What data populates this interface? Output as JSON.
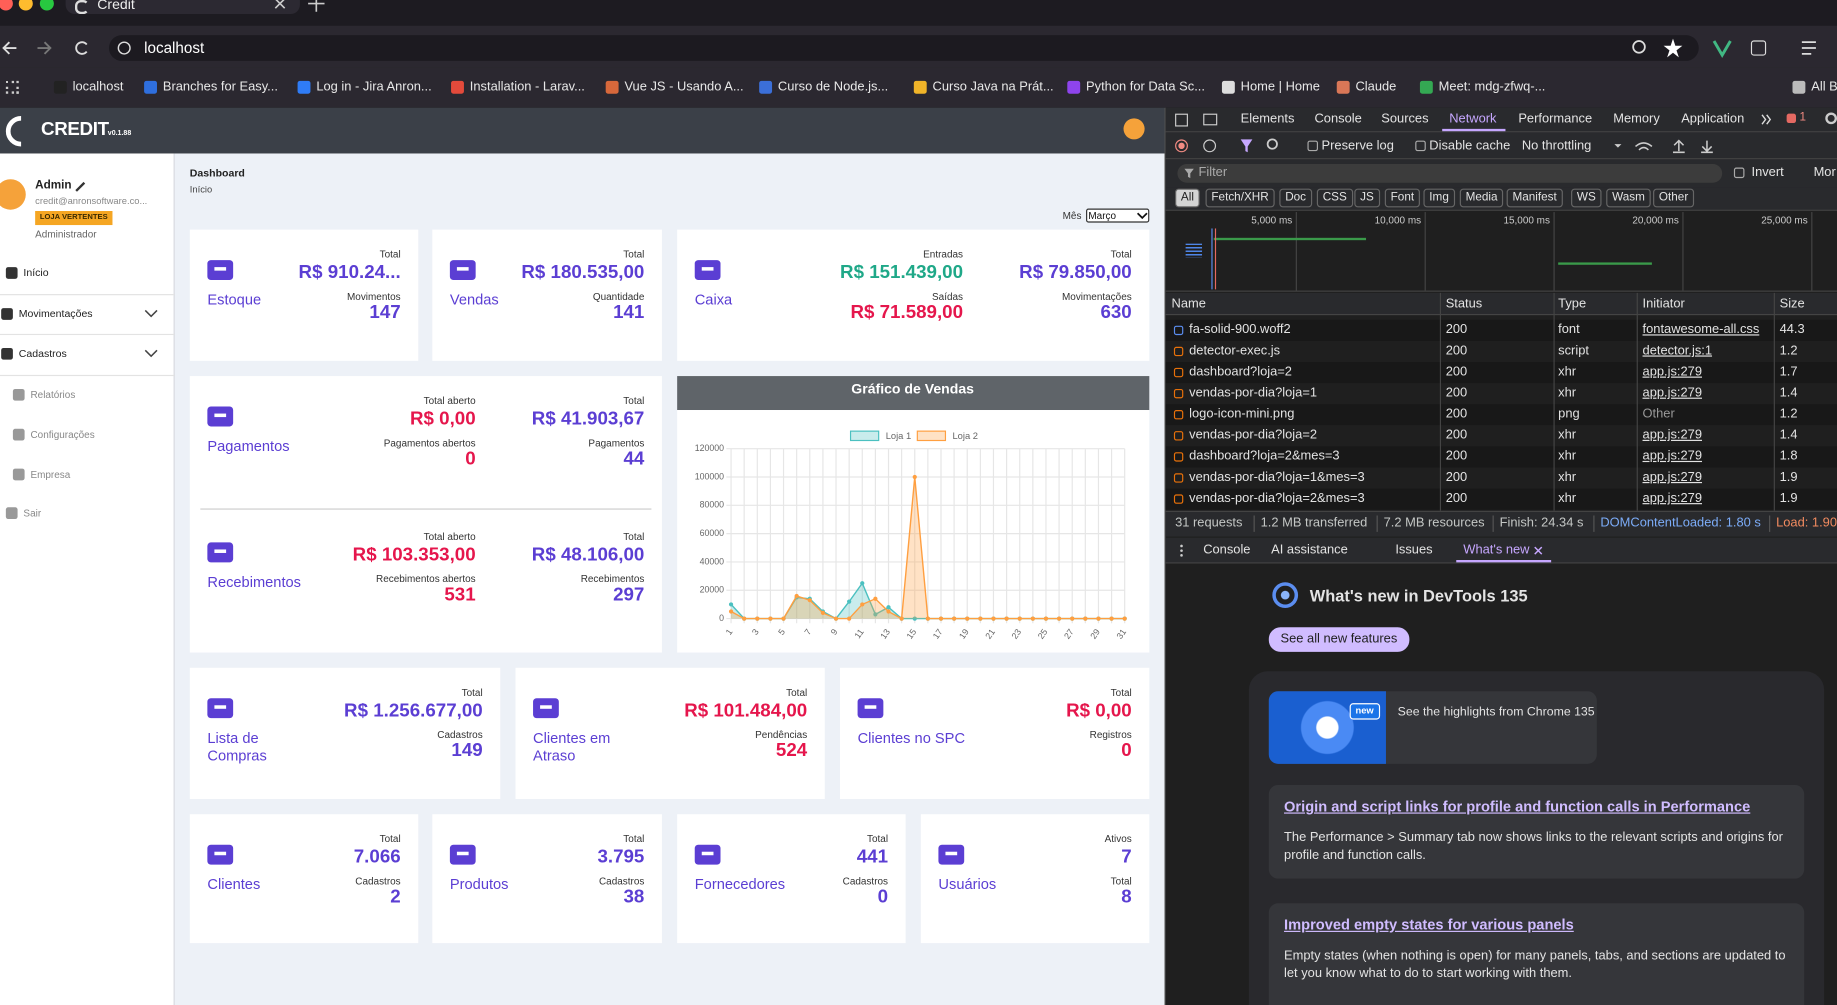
{
  "browser": {
    "tab_title": "Credit",
    "url": "localhost",
    "bookmarks": [
      "localhost",
      "Branches for Easy...",
      "Log in - Jira Anron...",
      "Installation - Larav...",
      "Vue JS - Usando A...",
      "Curso de Node.js...",
      "Curso Java na Prát...",
      "Python for Data Sc...",
      "Home | Home",
      "Claude",
      "Meet: mdg-zfwq-...",
      "All B"
    ]
  },
  "app": {
    "logo": "CREDIT",
    "version": "v0.1.88",
    "accent_color": "#5b3ed3",
    "user": {
      "name": "Admin",
      "email": "credit@anronsoftware.co...",
      "store": "LOJA VERTENTES",
      "role": "Administrador"
    },
    "menu": [
      "Início",
      "Movimentações",
      "Cadastros",
      "Relatórios",
      "Configurações",
      "Empresa",
      "Sair"
    ],
    "page_title": "Dashboard",
    "breadcrumb": "Início",
    "month_label": "Mês",
    "month": "Março",
    "cards": [
      {
        "title": "Estoque",
        "columns": [
          [
            {
              "label": "Total",
              "value": "R$ 910.24..."
            },
            {
              "label": "Movimentos",
              "value": "147"
            }
          ]
        ]
      },
      {
        "title": "Vendas",
        "columns": [
          [
            {
              "label": "Total",
              "value": "R$ 180.535,00"
            },
            {
              "label": "Quantidade",
              "value": "141"
            }
          ]
        ]
      },
      {
        "title": "Caixa",
        "columns": [
          [
            {
              "label": "Entradas",
              "value": "R$ 151.439,00",
              "color": "#1fa888"
            },
            {
              "label": "Saídas",
              "value": "R$ 71.589,00",
              "color": "#e5164c"
            }
          ],
          [
            {
              "label": "Total",
              "value": "R$ 79.850,00"
            },
            {
              "label": "Movimentações",
              "value": "630"
            }
          ]
        ]
      },
      {
        "title": "Pagamentos",
        "columns": [
          [
            {
              "label": "Total aberto",
              "value": "R$ 0,00",
              "color": "#e5164c"
            },
            {
              "label": "Pagamentos abertos",
              "value": "0",
              "color": "#e5164c"
            }
          ],
          [
            {
              "label": "Total",
              "value": "R$ 41.903,67"
            },
            {
              "label": "Pagamentos",
              "value": "44"
            }
          ]
        ]
      },
      {
        "title": "Recebimentos",
        "columns": [
          [
            {
              "label": "Total aberto",
              "value": "R$ 103.353,00",
              "color": "#e5164c"
            },
            {
              "label": "Recebimentos abertos",
              "value": "531",
              "color": "#e5164c"
            }
          ],
          [
            {
              "label": "Total",
              "value": "R$ 48.106,00"
            },
            {
              "label": "Recebimentos",
              "value": "297"
            }
          ]
        ]
      },
      {
        "title": "Lista de Compras",
        "columns": [
          [
            {
              "label": "Total",
              "value": "R$ 1.256.677,00"
            },
            {
              "label": "Cadastros",
              "value": "149"
            }
          ]
        ]
      },
      {
        "title": "Clientes em Atraso",
        "columns": [
          [
            {
              "label": "Total",
              "value": "R$ 101.484,00",
              "color": "#e5164c"
            },
            {
              "label": "Pendências",
              "value": "524",
              "color": "#e5164c"
            }
          ]
        ]
      },
      {
        "title": "Clientes no SPC",
        "columns": [
          [
            {
              "label": "Total",
              "value": "R$ 0,00",
              "color": "#e5164c"
            },
            {
              "label": "Registros",
              "value": "0",
              "color": "#e5164c"
            }
          ]
        ]
      },
      {
        "title": "Clientes",
        "columns": [
          [
            {
              "label": "Total",
              "value": "7.066"
            },
            {
              "label": "Cadastros",
              "value": "2"
            }
          ]
        ]
      },
      {
        "title": "Produtos",
        "columns": [
          [
            {
              "label": "Total",
              "value": "3.795"
            },
            {
              "label": "Cadastros",
              "value": "38"
            }
          ]
        ]
      },
      {
        "title": "Fornecedores",
        "columns": [
          [
            {
              "label": "Total",
              "value": "441"
            },
            {
              "label": "Cadastros",
              "value": "0"
            }
          ]
        ]
      },
      {
        "title": "Usuários",
        "columns": [
          [
            {
              "label": "Ativos",
              "value": "7"
            },
            {
              "label": "Total",
              "value": "8"
            }
          ]
        ]
      }
    ]
  },
  "chart_data": {
    "type": "line",
    "title": "Gráfico de Vendas",
    "categories": [
      1,
      null,
      3,
      null,
      5,
      null,
      7,
      null,
      9,
      null,
      11,
      null,
      13,
      null,
      15,
      null,
      17,
      null,
      19,
      null,
      21,
      null,
      23,
      null,
      25,
      null,
      27,
      null,
      29,
      null,
      31
    ],
    "series": [
      {
        "name": "Loja 1",
        "color": "#4bc0c0",
        "values": [
          10000,
          0,
          0,
          0,
          0,
          15000,
          14000,
          5000,
          0,
          12000,
          25000,
          3000,
          8000,
          0,
          0,
          0,
          0,
          0,
          0,
          0,
          0,
          0,
          0,
          0,
          0,
          0,
          0,
          0,
          0,
          0,
          0
        ]
      },
      {
        "name": "Loja 2",
        "color": "#ff9f40",
        "values": [
          5000,
          0,
          0,
          0,
          0,
          16000,
          13000,
          4000,
          0,
          0,
          10000,
          14000,
          5000,
          0,
          100000,
          0,
          0,
          0,
          0,
          0,
          0,
          0,
          0,
          0,
          0,
          0,
          0,
          0,
          0,
          0,
          0
        ]
      }
    ],
    "ylim": [
      0,
      120000
    ],
    "yticks": [
      0,
      20000,
      40000,
      60000,
      80000,
      100000,
      120000
    ],
    "grid": true
  },
  "devtools": {
    "tabs": [
      "Elements",
      "Console",
      "Sources",
      "Network",
      "Performance",
      "Memory",
      "Application"
    ],
    "error_count": "1",
    "toolbar": [
      "Preserve log",
      "Disable cache",
      "No throttling"
    ],
    "filter_placeholder": "Filter",
    "invert": "Invert",
    "more": "Mor",
    "type_filters": [
      "All",
      "Fetch/XHR",
      "Doc",
      "CSS",
      "JS",
      "Font",
      "Img",
      "Media",
      "Manifest",
      "WS",
      "Wasm",
      "Other"
    ],
    "timeline_ticks": [
      "5,000 ms",
      "10,000 ms",
      "15,000 ms",
      "20,000 ms",
      "25,000 ms"
    ],
    "columns": [
      "Name",
      "Status",
      "Type",
      "Initiator",
      "Size"
    ],
    "rows": [
      [
        "fa-solid-900.woff2",
        "200",
        "font",
        "fontawesome-all.css",
        "44.3"
      ],
      [
        "detector-exec.js",
        "200",
        "script",
        "detector.js:1",
        "1.2"
      ],
      [
        "dashboard?loja=2",
        "200",
        "xhr",
        "app.js:279",
        "1.7"
      ],
      [
        "vendas-por-dia?loja=1",
        "200",
        "xhr",
        "app.js:279",
        "1.4"
      ],
      [
        "logo-icon-mini.png",
        "200",
        "png",
        "Other",
        "1.2"
      ],
      [
        "vendas-por-dia?loja=2",
        "200",
        "xhr",
        "app.js:279",
        "1.4"
      ],
      [
        "dashboard?loja=2&mes=3",
        "200",
        "xhr",
        "app.js:279",
        "1.8"
      ],
      [
        "vendas-por-dia?loja=1&mes=3",
        "200",
        "xhr",
        "app.js:279",
        "1.9"
      ],
      [
        "vendas-por-dia?loja=2&mes=3",
        "200",
        "xhr",
        "app.js:279",
        "1.9"
      ]
    ],
    "summary": [
      "31 requests",
      "1.2 MB transferred",
      "7.2 MB resources",
      "Finish: 24.34 s",
      "DOMContentLoaded: 1.80 s",
      "Load: 1.90"
    ],
    "drawer_tabs": [
      "Console",
      "AI assistance",
      "Issues",
      "What's new"
    ],
    "whats_new": {
      "title": "What's new in DevTools 135",
      "button": "See all new features",
      "video_badge": "new",
      "video_caption": "See the highlights from Chrome 135",
      "articles": [
        {
          "title": "Origin and script links for profile and function calls in Performance",
          "body": "The Performance > Summary tab now shows links to the relevant scripts and origins for profile and function calls."
        },
        {
          "title": "Improved empty states for various panels",
          "body": "Empty states (when nothing is open) for many panels, tabs, and sections are updated to let you know what to do to start working with them."
        }
      ]
    }
  }
}
